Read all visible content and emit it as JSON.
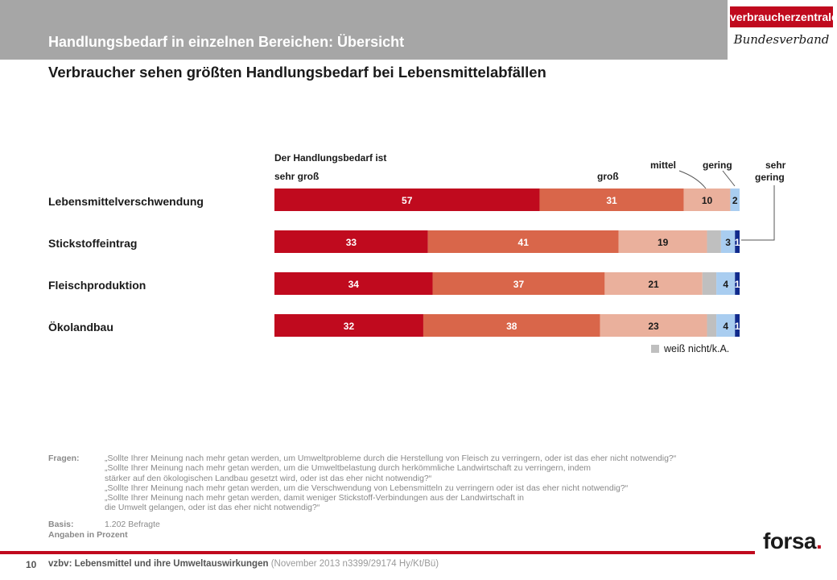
{
  "header": {
    "title": "Handlungsbedarf in einzelnen Bereichen: Übersicht",
    "logo_top": "verbraucherzentrale",
    "logo_bottom": "Bundesverband"
  },
  "subtitle": "Verbraucher sehen größten Handlungsbedarf bei Lebensmittelabfällen",
  "chart_data": {
    "type": "bar",
    "orientation": "horizontal",
    "stacked": true,
    "title": "Der Handlungsbedarf ist",
    "categories": [
      "Lebensmittelverschwendung",
      "Stickstoffeintrag",
      "Fleischproduktion",
      "Ökolandbau"
    ],
    "series": [
      {
        "name": "sehr groß",
        "color": "#c00a1e",
        "values": [
          57,
          33,
          34,
          32
        ],
        "labels": [
          "57",
          "33",
          "34",
          "32"
        ]
      },
      {
        "name": "groß",
        "color": "#d9664a",
        "values": [
          31,
          41,
          37,
          38
        ],
        "labels": [
          "31",
          "41",
          "37",
          "38"
        ]
      },
      {
        "name": "mittel",
        "color": "#eab09c",
        "values": [
          10,
          19,
          21,
          23
        ],
        "labels": [
          "10",
          "19",
          "21",
          "23"
        ]
      },
      {
        "name": "weiß nicht/k.A.",
        "color": "#bfbfbf",
        "values": [
          0,
          3,
          3,
          2
        ],
        "labels": [
          "",
          "",
          "",
          ""
        ]
      },
      {
        "name": "gering",
        "color": "#a9cdf0",
        "values": [
          2,
          3,
          4,
          4
        ],
        "labels": [
          "2",
          "3",
          "4",
          "4"
        ]
      },
      {
        "name": "sehr gering",
        "color": "#102a8c",
        "values": [
          0,
          1,
          1,
          1
        ],
        "labels": [
          "",
          "1",
          "1",
          "1"
        ]
      }
    ],
    "header_labels": [
      "sehr groß",
      "groß",
      "mittel",
      "gering",
      "sehr gering"
    ],
    "legend": "weiß nicht/k.A.",
    "xlim": [
      0,
      100
    ],
    "grid": false,
    "unit": "Prozent"
  },
  "questions": {
    "label": "Fragen:",
    "items": [
      "„Sollte Ihrer Meinung nach mehr getan werden, um Umweltprobleme durch die Herstellung von Fleisch zu verringern, oder ist das eher nicht notwendig?“",
      "„Sollte Ihrer Meinung nach mehr getan werden, um die Umweltbelastung durch herkömmliche Landwirtschaft zu verringern, indem",
      "stärker auf den ökologischen Landbau gesetzt wird, oder ist das eher nicht notwendig?“",
      "„Sollte Ihrer Meinung nach mehr getan werden, um die Verschwendung von Lebensmitteln zu verringern oder ist das eher nicht notwendig?“",
      "„Sollte Ihrer Meinung nach mehr getan werden, damit weniger Stickstoff-Verbindungen aus der Landwirtschaft in",
      "die Umwelt gelangen, oder ist das eher nicht notwendig?“"
    ]
  },
  "basis": {
    "label": "Basis:",
    "value": "1.202 Befragte"
  },
  "unit_note": "Angaben in Prozent",
  "footer": {
    "page": "10",
    "main": "vzbv: Lebensmittel und ihre Umweltauswirkungen",
    "meta": "(November 2013   n3399/29174  Hy/Kt/Bü)",
    "brand": "forsa",
    "brand_dot": "."
  }
}
